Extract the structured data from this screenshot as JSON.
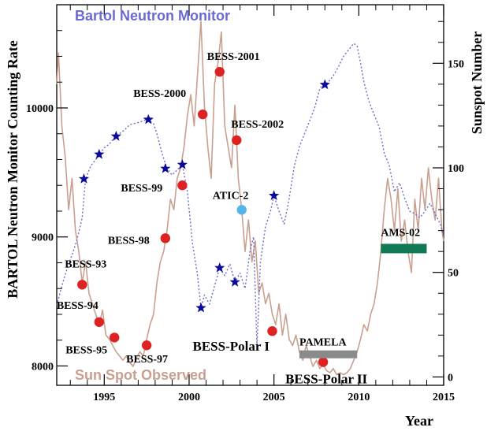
{
  "chart_data": {
    "type": "line",
    "xlabel": "Year",
    "ylabel_left": "BARTOL Neutron Monitor Counting Rate",
    "ylabel_right": "Sunspot Number",
    "xlim": [
      1992.2,
      2015
    ],
    "ylim_left": [
      7850,
      10800
    ],
    "ylim_right": [
      -4,
      178
    ],
    "x_ticks": [
      1995,
      2000,
      2005,
      2010,
      2015
    ],
    "y_ticks_left": [
      8000,
      9000,
      10000
    ],
    "y_ticks_right": [
      0,
      50,
      100,
      150
    ],
    "grid": false,
    "series": [
      {
        "name": "Bartol Neutron Monitor",
        "axis": "left",
        "color": "#6a6ad0",
        "style": "dotted",
        "points": [
          [
            1992.2,
            8470
          ],
          [
            1992.5,
            8620
          ],
          [
            1992.8,
            8750
          ],
          [
            1993.1,
            8860
          ],
          [
            1993.4,
            8980
          ],
          [
            1993.7,
            9150
          ],
          [
            1993.9,
            9450
          ],
          [
            1994.2,
            9550
          ],
          [
            1994.5,
            9600
          ],
          [
            1994.7,
            9640
          ],
          [
            1995.0,
            9690
          ],
          [
            1995.3,
            9720
          ],
          [
            1995.6,
            9770
          ],
          [
            1995.9,
            9800
          ],
          [
            1996.2,
            9830
          ],
          [
            1996.5,
            9870
          ],
          [
            1996.8,
            9880
          ],
          [
            1997.1,
            9890
          ],
          [
            1997.5,
            9910
          ],
          [
            1997.9,
            9880
          ],
          [
            1998.1,
            9800
          ],
          [
            1998.4,
            9650
          ],
          [
            1998.7,
            9530
          ],
          [
            1999.0,
            9480
          ],
          [
            1999.3,
            9520
          ],
          [
            1999.6,
            9560
          ],
          [
            1999.9,
            9350
          ],
          [
            2000.2,
            8950
          ],
          [
            2000.5,
            8700
          ],
          [
            2000.7,
            8450
          ],
          [
            2000.9,
            8550
          ],
          [
            2001.2,
            8480
          ],
          [
            2001.5,
            8620
          ],
          [
            2001.8,
            8760
          ],
          [
            2002.1,
            8700
          ],
          [
            2002.4,
            8790
          ],
          [
            2002.7,
            8650
          ],
          [
            2003.0,
            8720
          ],
          [
            2003.3,
            8600
          ],
          [
            2003.6,
            8900
          ],
          [
            2003.8,
            9000
          ],
          [
            2004.0,
            8150
          ],
          [
            2004.2,
            8800
          ],
          [
            2004.5,
            9080
          ],
          [
            2004.8,
            9200
          ],
          [
            2005.0,
            9320
          ],
          [
            2005.3,
            9200
          ],
          [
            2005.6,
            9100
          ],
          [
            2005.9,
            9300
          ],
          [
            2006.2,
            9550
          ],
          [
            2006.5,
            9700
          ],
          [
            2006.8,
            9800
          ],
          [
            2007.1,
            9900
          ],
          [
            2007.4,
            10000
          ],
          [
            2007.7,
            10150
          ],
          [
            2007.9,
            10180
          ],
          [
            2008.2,
            10200
          ],
          [
            2008.5,
            10250
          ],
          [
            2008.8,
            10320
          ],
          [
            2009.1,
            10400
          ],
          [
            2009.4,
            10450
          ],
          [
            2009.7,
            10500
          ],
          [
            2009.9,
            10480
          ],
          [
            2010.1,
            10350
          ],
          [
            2010.3,
            10200
          ],
          [
            2010.6,
            10050
          ],
          [
            2010.9,
            9950
          ],
          [
            2011.2,
            9850
          ],
          [
            2011.5,
            9650
          ],
          [
            2011.8,
            9550
          ],
          [
            2012.1,
            9350
          ],
          [
            2012.4,
            9420
          ],
          [
            2012.7,
            9300
          ],
          [
            2013.0,
            9200
          ],
          [
            2013.3,
            9180
          ],
          [
            2013.6,
            9150
          ],
          [
            2013.9,
            9200
          ],
          [
            2014.2,
            9260
          ],
          [
            2014.5,
            9180
          ],
          [
            2014.8,
            9100
          ],
          [
            2015.0,
            9000
          ]
        ]
      },
      {
        "name": "Sun Spot Observed",
        "axis": "right",
        "color": "#c8a090",
        "style": "solid",
        "points": [
          [
            1992.2,
            140
          ],
          [
            1992.3,
            155
          ],
          [
            1992.5,
            120
          ],
          [
            1992.7,
            105
          ],
          [
            1992.9,
            80
          ],
          [
            1993.1,
            95
          ],
          [
            1993.3,
            70
          ],
          [
            1993.5,
            60
          ],
          [
            1993.7,
            45
          ],
          [
            1993.9,
            55
          ],
          [
            1994.1,
            40
          ],
          [
            1994.3,
            35
          ],
          [
            1994.5,
            30
          ],
          [
            1994.7,
            25
          ],
          [
            1994.9,
            32
          ],
          [
            1995.1,
            20
          ],
          [
            1995.3,
            18
          ],
          [
            1995.5,
            15
          ],
          [
            1995.7,
            12
          ],
          [
            1995.9,
            10
          ],
          [
            1996.1,
            8
          ],
          [
            1996.3,
            10
          ],
          [
            1996.5,
            7
          ],
          [
            1996.7,
            5
          ],
          [
            1996.9,
            9
          ],
          [
            1997.1,
            12
          ],
          [
            1997.3,
            10
          ],
          [
            1997.5,
            18
          ],
          [
            1997.7,
            25
          ],
          [
            1997.9,
            30
          ],
          [
            1998.1,
            45
          ],
          [
            1998.3,
            55
          ],
          [
            1998.5,
            60
          ],
          [
            1998.7,
            70
          ],
          [
            1998.9,
            85
          ],
          [
            1999.1,
            80
          ],
          [
            1999.3,
            95
          ],
          [
            1999.5,
            100
          ],
          [
            1999.7,
            110
          ],
          [
            1999.9,
            125
          ],
          [
            2000.1,
            135
          ],
          [
            2000.3,
            120
          ],
          [
            2000.5,
            145
          ],
          [
            2000.7,
            170
          ],
          [
            2000.9,
            130
          ],
          [
            2001.1,
            110
          ],
          [
            2001.3,
            95
          ],
          [
            2001.5,
            140
          ],
          [
            2001.7,
            150
          ],
          [
            2001.9,
            165
          ],
          [
            2002.1,
            120
          ],
          [
            2002.3,
            110
          ],
          [
            2002.5,
            100
          ],
          [
            2002.7,
            130
          ],
          [
            2002.9,
            95
          ],
          [
            2003.1,
            80
          ],
          [
            2003.3,
            60
          ],
          [
            2003.5,
            75
          ],
          [
            2003.7,
            55
          ],
          [
            2003.9,
            65
          ],
          [
            2004.1,
            40
          ],
          [
            2004.3,
            45
          ],
          [
            2004.5,
            35
          ],
          [
            2004.7,
            40
          ],
          [
            2004.9,
            30
          ],
          [
            2005.1,
            25
          ],
          [
            2005.3,
            35
          ],
          [
            2005.5,
            20
          ],
          [
            2005.7,
            30
          ],
          [
            2005.9,
            18
          ],
          [
            2006.1,
            15
          ],
          [
            2006.3,
            20
          ],
          [
            2006.5,
            12
          ],
          [
            2006.7,
            8
          ],
          [
            2006.9,
            15
          ],
          [
            2007.1,
            10
          ],
          [
            2007.3,
            5
          ],
          [
            2007.5,
            8
          ],
          [
            2007.7,
            4
          ],
          [
            2007.9,
            6
          ],
          [
            2008.1,
            3
          ],
          [
            2008.3,
            2
          ],
          [
            2008.5,
            4
          ],
          [
            2008.7,
            1
          ],
          [
            2008.9,
            2
          ],
          [
            2009.1,
            1
          ],
          [
            2009.3,
            2
          ],
          [
            2009.5,
            4
          ],
          [
            2009.7,
            8
          ],
          [
            2009.9,
            12
          ],
          [
            2010.1,
            18
          ],
          [
            2010.3,
            25
          ],
          [
            2010.5,
            22
          ],
          [
            2010.7,
            30
          ],
          [
            2010.9,
            35
          ],
          [
            2011.1,
            45
          ],
          [
            2011.3,
            60
          ],
          [
            2011.5,
            80
          ],
          [
            2011.7,
            95
          ],
          [
            2011.9,
            85
          ],
          [
            2012.1,
            70
          ],
          [
            2012.3,
            90
          ],
          [
            2012.5,
            65
          ],
          [
            2012.7,
            75
          ],
          [
            2012.9,
            60
          ],
          [
            2013.1,
            50
          ],
          [
            2013.3,
            85
          ],
          [
            2013.5,
            70
          ],
          [
            2013.7,
            95
          ],
          [
            2013.9,
            80
          ],
          [
            2014.1,
            100
          ],
          [
            2014.3,
            85
          ],
          [
            2014.5,
            75
          ],
          [
            2014.7,
            95
          ],
          [
            2014.9,
            70
          ],
          [
            2015.0,
            65
          ]
        ]
      }
    ],
    "markers": {
      "stars_left_axis": [
        [
          1993.8,
          9450
        ],
        [
          1994.7,
          9640
        ],
        [
          1995.7,
          9780
        ],
        [
          1997.6,
          9910
        ],
        [
          1998.6,
          9530
        ],
        [
          1999.6,
          9560
        ],
        [
          2000.7,
          8450
        ],
        [
          2001.8,
          8760
        ],
        [
          2002.7,
          8650
        ],
        [
          2005.0,
          9320
        ],
        [
          2008.0,
          10180
        ]
      ],
      "missions": [
        {
          "label": "BESS-93",
          "x": 1993.7,
          "y": 8630,
          "color": "#dd2222",
          "type": "point"
        },
        {
          "label": "BESS-94",
          "x": 1994.7,
          "y": 8340,
          "color": "#dd2222",
          "type": "point"
        },
        {
          "label": "BESS-95",
          "x": 1995.6,
          "y": 8220,
          "color": "#dd2222",
          "type": "point"
        },
        {
          "label": "BESS-97",
          "x": 1997.5,
          "y": 8160,
          "color": "#dd2222",
          "type": "point"
        },
        {
          "label": "BESS-98",
          "x": 1998.6,
          "y": 8990,
          "color": "#dd2222",
          "type": "point"
        },
        {
          "label": "BESS-99",
          "x": 1999.6,
          "y": 9400,
          "color": "#dd2222",
          "type": "point"
        },
        {
          "label": "BESS-2000",
          "x": 2000.8,
          "y": 9950,
          "color": "#dd2222",
          "type": "point"
        },
        {
          "label": "BESS-2001",
          "x": 2001.8,
          "y": 10280,
          "color": "#dd2222",
          "type": "point"
        },
        {
          "label": "BESS-2002",
          "x": 2002.8,
          "y": 9750,
          "color": "#dd2222",
          "type": "point"
        },
        {
          "label": "ATIC-2",
          "x": 2003.1,
          "y": 9210,
          "color": "#55b5e8",
          "type": "point"
        },
        {
          "label": "BESS-Polar I",
          "x": 2004.9,
          "y": 8270,
          "color": "#dd2222",
          "type": "point"
        },
        {
          "label": "BESS-Polar II",
          "x": 2007.9,
          "y": 8030,
          "color": "#dd2222",
          "type": "point"
        },
        {
          "label": "PAMELA",
          "x0": 2006.5,
          "x1": 2009.9,
          "y": 8090,
          "color": "#8a8a8a",
          "type": "bar"
        },
        {
          "label": "AMS-02",
          "x0": 2011.3,
          "x1": 2014.0,
          "y": 8910,
          "color": "#0f7a55",
          "type": "bar"
        }
      ]
    },
    "legend": {
      "bartol": {
        "text": "Bartol Neutron Monitor",
        "color": "#6a6ad0"
      },
      "sunspot": {
        "text": "Sun Spot Observed",
        "color": "#c8a090"
      }
    }
  }
}
